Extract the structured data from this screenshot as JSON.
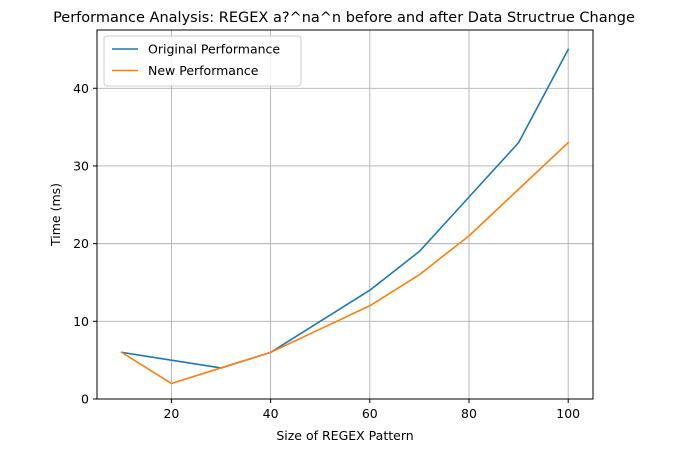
{
  "chart_data": {
    "type": "line",
    "title": "Performance Analysis: REGEX a?^na^n before and after Data Structrue Change",
    "xlabel": "Size of REGEX Pattern",
    "ylabel": "Time (ms)",
    "xlim": [
      5,
      105
    ],
    "ylim": [
      0,
      47.5
    ],
    "xticks": [
      20,
      40,
      60,
      80,
      100
    ],
    "yticks": [
      0,
      10,
      20,
      30,
      40
    ],
    "grid": true,
    "legend_position": "upper-left",
    "x": [
      10,
      20,
      30,
      40,
      50,
      60,
      70,
      80,
      90,
      100
    ],
    "series": [
      {
        "name": "Original Performance",
        "color": "#1f77b4",
        "values": [
          6,
          5,
          4,
          6,
          10,
          14,
          19,
          26,
          33,
          45
        ]
      },
      {
        "name": "New Performance",
        "color": "#ff7f0e",
        "values": [
          6,
          2,
          4,
          6,
          9,
          12,
          16,
          21,
          27,
          33
        ]
      }
    ]
  }
}
